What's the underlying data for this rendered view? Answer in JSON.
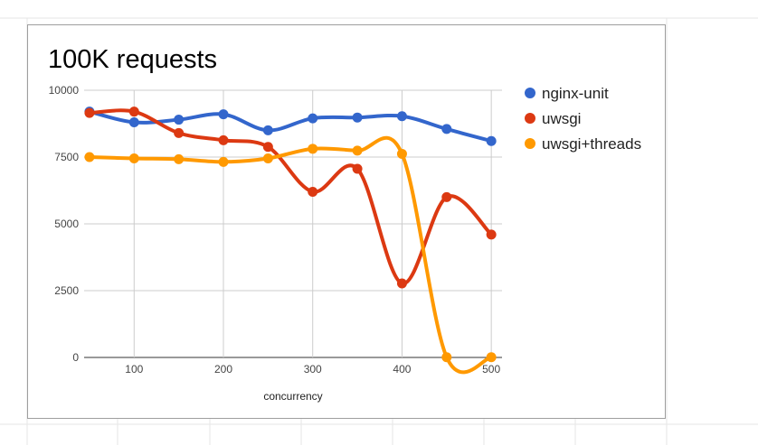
{
  "chart_data": {
    "type": "line",
    "title": "100K requests",
    "xlabel": "concurrency",
    "ylabel": "",
    "x": [
      50,
      100,
      150,
      200,
      250,
      300,
      350,
      400,
      450,
      500
    ],
    "xlim": [
      44,
      512
    ],
    "xticks": [
      100,
      200,
      300,
      400,
      500
    ],
    "ylim": [
      0,
      10000
    ],
    "yticks": [
      0,
      2500,
      5000,
      7500,
      10000
    ],
    "smooth": true,
    "grid": true,
    "legend_position": "right",
    "series": [
      {
        "name": "nginx-unit",
        "color": "#3366cc",
        "values": [
          9200,
          8800,
          8900,
          9100,
          8500,
          8950,
          8980,
          9030,
          8550,
          8100
        ]
      },
      {
        "name": "uwsgi",
        "color": "#dc3912",
        "values": [
          9150,
          9200,
          8400,
          8130,
          7880,
          6200,
          7060,
          2770,
          6000,
          4600
        ]
      },
      {
        "name": "uwsgi+threads",
        "color": "#ff9900",
        "values": [
          7500,
          7450,
          7420,
          7320,
          7450,
          7810,
          7740,
          7620,
          10,
          10
        ]
      }
    ]
  }
}
